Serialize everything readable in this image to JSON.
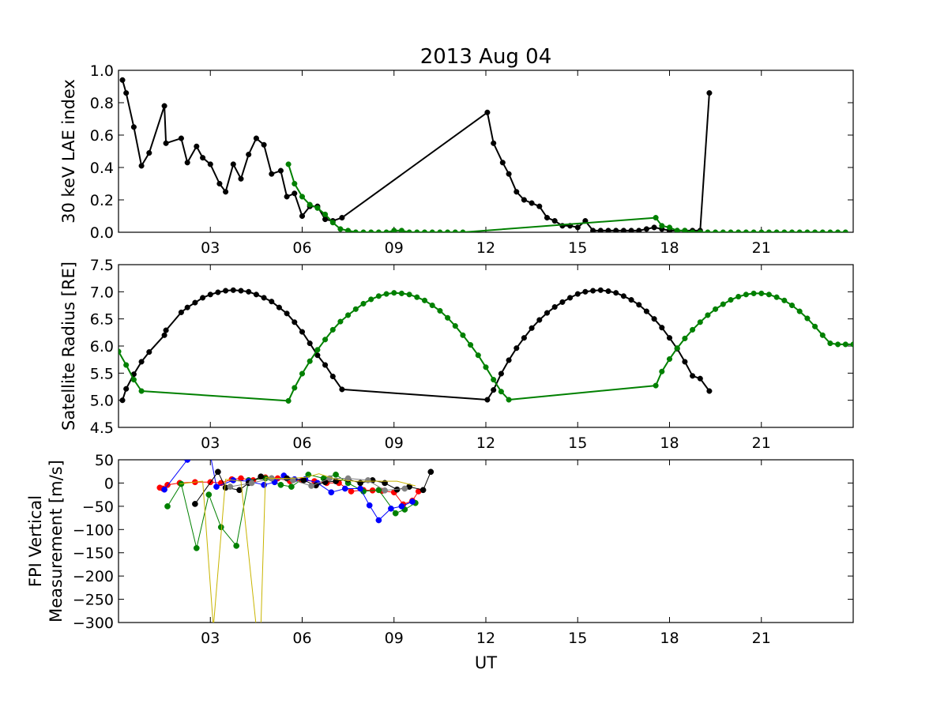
{
  "chart_data": [
    {
      "type": "line",
      "title": "2013 Aug 04",
      "ylabel": "30 keV LAE index",
      "xlabel": "",
      "xlim": [
        0,
        24
      ],
      "ylim": [
        0,
        1.0
      ],
      "x_ticks": [
        3,
        6,
        9,
        12,
        15,
        18,
        21
      ],
      "x_tick_labels": [
        "03",
        "06",
        "09",
        "12",
        "15",
        "18",
        "21"
      ],
      "y_ticks": [
        0,
        0.2,
        0.4,
        0.6,
        0.8,
        1.0
      ],
      "y_tick_labels": [
        "0.0",
        "0.2",
        "0.4",
        "0.6",
        "0.8",
        "1.0"
      ],
      "grid": false,
      "series": [
        {
          "color": "#000000",
          "x": [
            0.13,
            0.25,
            0.5,
            0.75,
            1.0,
            1.5,
            1.55,
            2.05,
            2.25,
            2.55,
            2.75,
            3.0,
            3.3,
            3.5,
            3.75,
            4.0,
            4.25,
            4.5,
            4.75,
            5.0,
            5.3,
            5.5,
            5.75,
            6.0,
            6.25,
            6.5,
            6.75,
            7.0,
            7.3,
            12.05,
            12.25,
            12.55,
            12.75,
            13.0,
            13.25,
            13.5,
            13.75,
            14.0,
            14.25,
            14.5,
            14.75,
            15.0,
            15.25,
            15.5,
            15.75,
            16.0,
            16.25,
            16.5,
            16.75,
            17.0,
            17.25,
            17.5,
            17.75,
            18.0,
            18.25,
            18.5,
            18.75,
            19.0,
            19.3
          ],
          "y": [
            0.94,
            0.86,
            0.65,
            0.41,
            0.49,
            0.78,
            0.55,
            0.58,
            0.43,
            0.53,
            0.46,
            0.42,
            0.3,
            0.25,
            0.42,
            0.33,
            0.48,
            0.58,
            0.54,
            0.36,
            0.38,
            0.22,
            0.24,
            0.1,
            0.16,
            0.16,
            0.08,
            0.07,
            0.09,
            0.74,
            0.55,
            0.43,
            0.36,
            0.25,
            0.2,
            0.18,
            0.16,
            0.09,
            0.07,
            0.04,
            0.04,
            0.03,
            0.07,
            0.01,
            0.01,
            0.01,
            0.01,
            0.01,
            0.01,
            0.01,
            0.02,
            0.03,
            0.02,
            0.01,
            0.01,
            0.01,
            0.01,
            0.01,
            0.86
          ]
        },
        {
          "color": "#008000",
          "x": [
            5.55,
            5.75,
            6.0,
            6.25,
            6.5,
            6.75,
            7.0,
            7.25,
            7.5,
            7.75,
            8.0,
            8.25,
            8.5,
            8.75,
            9.0,
            9.25,
            9.5,
            9.75,
            10.0,
            10.25,
            10.5,
            10.75,
            11.0,
            11.25,
            17.55,
            17.75,
            18.0,
            18.25,
            18.5,
            18.75,
            19.0,
            19.25,
            19.5,
            19.75,
            20.0,
            20.25,
            20.5,
            20.75,
            21.0,
            21.25,
            21.5,
            21.75,
            22.0,
            22.25,
            22.5,
            22.75,
            23.0,
            23.25,
            23.5,
            23.75
          ],
          "y": [
            0.42,
            0.3,
            0.22,
            0.17,
            0.15,
            0.11,
            0.06,
            0.02,
            0.01,
            0.0,
            0.0,
            0.0,
            0.0,
            0.0,
            0.01,
            0.01,
            0.0,
            0.0,
            0.0,
            0.0,
            0.0,
            0.0,
            0.0,
            0.0,
            0.09,
            0.04,
            0.03,
            0.01,
            0.01,
            0.0,
            0.0,
            0.0,
            0.0,
            0.0,
            0.0,
            0.0,
            0.0,
            0.0,
            0.0,
            0.0,
            0.0,
            0.0,
            0.0,
            0.0,
            0.0,
            0.0,
            0.0,
            0.0,
            0.0,
            0.0
          ]
        }
      ]
    },
    {
      "type": "line",
      "title": "",
      "ylabel": "Satellite Radius [RE]",
      "xlabel": "",
      "xlim": [
        0,
        24
      ],
      "ylim": [
        4.5,
        7.5
      ],
      "x_ticks": [
        3,
        6,
        9,
        12,
        15,
        18,
        21
      ],
      "x_tick_labels": [
        "03",
        "06",
        "09",
        "12",
        "15",
        "18",
        "21"
      ],
      "y_ticks": [
        4.5,
        5.0,
        5.5,
        6.0,
        6.5,
        7.0,
        7.5
      ],
      "y_tick_labels": [
        "4.5",
        "5.0",
        "5.5",
        "6.0",
        "6.5",
        "7.0",
        "7.5"
      ],
      "grid": false,
      "series": [
        {
          "color": "#000000",
          "x": [
            0.13,
            0.25,
            0.5,
            0.75,
            1.0,
            1.5,
            1.55,
            2.05,
            2.25,
            2.5,
            2.75,
            3.0,
            3.25,
            3.5,
            3.75,
            4.0,
            4.25,
            4.5,
            4.75,
            5.0,
            5.25,
            5.5,
            5.75,
            6.0,
            6.25,
            6.5,
            6.75,
            7.0,
            7.3,
            12.05,
            12.25,
            12.5,
            12.75,
            13.0,
            13.25,
            13.5,
            13.75,
            14.0,
            14.25,
            14.5,
            14.75,
            15.0,
            15.25,
            15.5,
            15.75,
            16.0,
            16.25,
            16.5,
            16.75,
            17.0,
            17.25,
            17.5,
            17.75,
            18.0,
            18.25,
            18.5,
            18.75,
            19.0,
            19.3
          ],
          "y": [
            5.0,
            5.21,
            5.48,
            5.71,
            5.89,
            6.2,
            6.29,
            6.62,
            6.71,
            6.8,
            6.89,
            6.95,
            6.99,
            7.02,
            7.03,
            7.02,
            7.0,
            6.95,
            6.89,
            6.82,
            6.71,
            6.6,
            6.44,
            6.26,
            6.05,
            5.83,
            5.65,
            5.44,
            5.2,
            5.01,
            5.19,
            5.49,
            5.74,
            5.96,
            6.15,
            6.33,
            6.48,
            6.61,
            6.72,
            6.81,
            6.89,
            6.96,
            7.0,
            7.02,
            7.03,
            7.01,
            6.98,
            6.92,
            6.85,
            6.76,
            6.64,
            6.5,
            6.34,
            6.15,
            5.95,
            5.71,
            5.45,
            5.4,
            5.17
          ]
        },
        {
          "color": "#008000",
          "x": [
            0.0,
            0.25,
            0.5,
            0.75,
            5.55,
            5.75,
            6.0,
            6.25,
            6.5,
            6.75,
            7.0,
            7.25,
            7.5,
            7.75,
            8.0,
            8.25,
            8.5,
            8.75,
            9.0,
            9.25,
            9.5,
            9.75,
            10.0,
            10.25,
            10.5,
            10.75,
            11.0,
            11.25,
            11.5,
            11.75,
            12.0,
            12.25,
            12.5,
            12.75,
            17.55,
            17.75,
            18.0,
            18.25,
            18.5,
            18.75,
            19.0,
            19.25,
            19.5,
            19.75,
            20.0,
            20.25,
            20.5,
            20.75,
            21.0,
            21.25,
            21.5,
            21.75,
            22.0,
            22.25,
            22.5,
            22.75,
            23.0,
            23.25,
            23.5,
            23.75,
            24.0
          ],
          "y": [
            5.9,
            5.65,
            5.38,
            5.17,
            4.99,
            5.23,
            5.49,
            5.72,
            5.93,
            6.12,
            6.3,
            6.45,
            6.57,
            6.68,
            6.78,
            6.86,
            6.92,
            6.96,
            6.98,
            6.97,
            6.95,
            6.9,
            6.84,
            6.75,
            6.65,
            6.52,
            6.37,
            6.2,
            6.02,
            5.83,
            5.61,
            5.38,
            5.16,
            5.01,
            5.27,
            5.53,
            5.76,
            5.96,
            6.14,
            6.3,
            6.44,
            6.57,
            6.68,
            6.77,
            6.85,
            6.91,
            6.95,
            6.97,
            6.97,
            6.95,
            6.9,
            6.84,
            6.75,
            6.64,
            6.51,
            6.36,
            6.2,
            6.05,
            6.03,
            6.03,
            6.03
          ]
        }
      ]
    },
    {
      "type": "line",
      "title": "",
      "ylabel": "FPI Vertical\nMeasurement [m/s]",
      "ylabel_lines": [
        "FPI Vertical",
        "Measurement [m/s]"
      ],
      "xlabel": "UT",
      "xlim": [
        0,
        24
      ],
      "ylim": [
        -300,
        50
      ],
      "x_ticks": [
        3,
        6,
        9,
        12,
        15,
        18,
        21
      ],
      "x_tick_labels": [
        "03",
        "06",
        "09",
        "12",
        "15",
        "18",
        "21"
      ],
      "y_ticks": [
        -300,
        -250,
        -200,
        -150,
        -100,
        -50,
        0,
        50
      ],
      "y_tick_labels": [
        "−300",
        "−250",
        "−200",
        "−150",
        "−100",
        "−50",
        "0",
        "50"
      ],
      "grid": false,
      "series": [
        {
          "color": "#ff0000",
          "markers": true,
          "x": [
            1.35,
            1.45,
            1.6,
            2.0,
            2.5,
            3.0,
            3.35,
            3.7,
            4.0,
            4.4,
            4.8,
            5.2,
            5.6,
            6.0,
            6.4,
            6.8,
            7.2,
            7.6,
            8.0,
            8.3,
            8.6,
            9.0,
            9.3,
            9.6,
            9.8
          ],
          "y": [
            -10,
            -12,
            -4,
            0,
            2,
            2,
            0,
            8,
            10,
            6,
            12,
            10,
            4,
            6,
            4,
            0,
            0,
            -18,
            -15,
            -16,
            -17,
            -20,
            -46,
            -38,
            -18
          ]
        },
        {
          "color": "#008000",
          "markers": true,
          "x": [
            1.6,
            2.05,
            2.55,
            2.95,
            3.35,
            3.85,
            4.25,
            4.8,
            5.3,
            5.65,
            6.2,
            6.7,
            7.1,
            7.5,
            8.0,
            8.5,
            9.05,
            9.35,
            9.7
          ],
          "y": [
            -50,
            -2,
            -140,
            -25,
            -95,
            -135,
            6,
            10,
            -4,
            -8,
            18,
            10,
            18,
            0,
            -18,
            -15,
            -65,
            -57,
            -43
          ]
        },
        {
          "color": "#0000ff",
          "markers": true,
          "x": [
            1.5,
            2.25,
            2.75,
            3.0,
            3.2,
            3.75,
            4.25,
            4.75,
            5.1,
            5.4,
            5.75,
            6.1,
            6.5,
            6.95,
            7.4,
            7.9,
            8.2,
            8.5,
            8.9,
            9.25,
            9.6
          ],
          "y": [
            -14,
            50,
            80,
            60,
            -8,
            6,
            4,
            -4,
            2,
            16,
            8,
            8,
            0,
            -20,
            -12,
            -12,
            -48,
            -80,
            -55,
            -50,
            -40
          ]
        },
        {
          "color": "#000000",
          "markers": true,
          "x": [
            2.5,
            3.25,
            3.5,
            3.95,
            4.25,
            4.65,
            5.0,
            5.5,
            6.05,
            6.45,
            6.75,
            7.1,
            7.5,
            7.9,
            8.3,
            8.7,
            9.1,
            9.5,
            9.95,
            10.2
          ],
          "y": [
            -45,
            24,
            -10,
            -15,
            0,
            14,
            10,
            10,
            6,
            -5,
            2,
            4,
            8,
            0,
            6,
            0,
            -14,
            -8,
            -15,
            24
          ]
        },
        {
          "color": "#808080",
          "markers": true,
          "x": [
            3.65,
            4.35,
            5.0,
            5.7,
            6.3,
            6.9,
            7.5,
            8.15,
            8.7,
            9.35
          ],
          "y": [
            -8,
            0,
            10,
            6,
            -6,
            10,
            10,
            6,
            -16,
            -12
          ]
        },
        {
          "color": "#c8b400",
          "markers": false,
          "x": [
            2.0,
            2.75,
            3.1,
            3.5,
            4.0,
            4.5,
            4.65,
            4.8,
            5.0,
            5.6,
            6.1,
            6.55,
            7.1,
            7.7,
            8.3,
            9.1,
            9.7
          ],
          "y": [
            -2,
            4,
            -310,
            8,
            4,
            -310,
            -310,
            12,
            10,
            10,
            12,
            20,
            8,
            4,
            4,
            4,
            -6
          ]
        }
      ]
    }
  ]
}
